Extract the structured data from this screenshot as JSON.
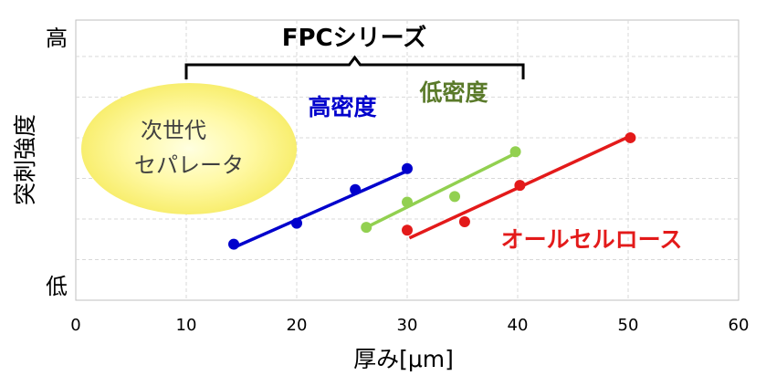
{
  "chart_data": {
    "type": "scatter",
    "xlabel": "厚み[μm]",
    "ylabel": "突刺強度",
    "y_top_label": "高",
    "y_bottom_label": "低",
    "xlim": [
      0,
      60
    ],
    "ylim": [
      0,
      10
    ],
    "x_ticks": [
      "0",
      "10",
      "20",
      "30",
      "40",
      "50",
      "60"
    ],
    "grid": true,
    "series": [
      {
        "name": "高密度",
        "color": "#0000CC",
        "points": [
          [
            14.3,
            2.0
          ],
          [
            20.0,
            2.75
          ],
          [
            25.3,
            3.95
          ],
          [
            30.0,
            4.7
          ]
        ],
        "fit": [
          [
            14.3,
            1.88
          ],
          [
            30.2,
            4.65
          ]
        ]
      },
      {
        "name": "低密度",
        "color": "#92D050",
        "points": [
          [
            26.3,
            2.6
          ],
          [
            30.0,
            3.5
          ],
          [
            34.3,
            3.7
          ],
          [
            39.8,
            5.3
          ]
        ],
        "fit": [
          [
            26.3,
            2.6
          ],
          [
            39.6,
            5.2
          ]
        ]
      },
      {
        "name": "オールセルロース",
        "color": "#E31A1A",
        "points": [
          [
            30.0,
            2.5
          ],
          [
            35.2,
            2.8
          ],
          [
            40.2,
            4.1
          ],
          [
            50.2,
            5.8
          ]
        ],
        "fit": [
          [
            30.2,
            2.22
          ],
          [
            50.3,
            5.88
          ]
        ]
      }
    ],
    "annotations": {
      "bracket_label": "FPCシリーズ",
      "bracket_range": [
        10,
        40.5
      ],
      "blob_lines": [
        "次世代",
        "セパレータ"
      ]
    }
  }
}
